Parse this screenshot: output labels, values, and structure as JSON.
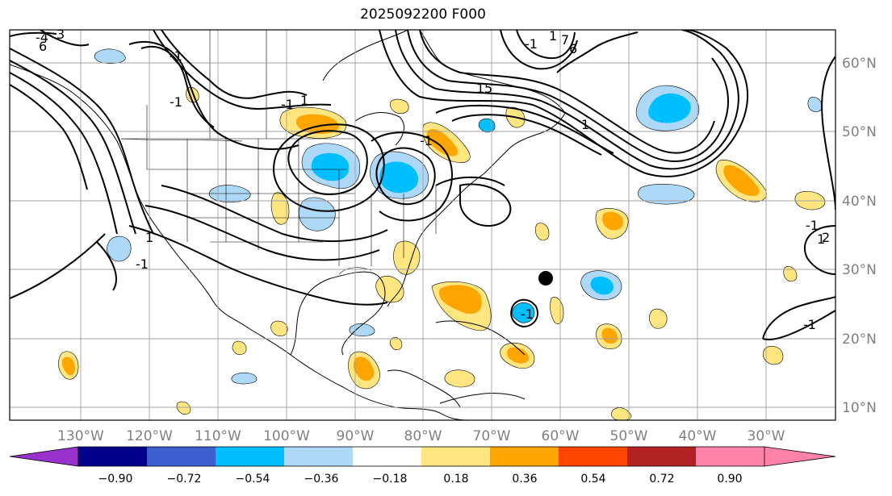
{
  "title": "2025092200 F000",
  "lat_labels": [
    "60°N",
    "50°N",
    "40°N",
    "30°N",
    "20°N",
    "10°N"
  ],
  "lon_labels": [
    "130°W",
    "120°W",
    "110°W",
    "100°W",
    "90°W",
    "80°W",
    "70°W",
    "60°W",
    "50°W",
    "40°W",
    "30°W"
  ],
  "colorbar": {
    "colors": [
      "#9932cc",
      "#00008b",
      "#3b5fcd",
      "#00bfff",
      "#add8f7",
      "#ffffff",
      "#ffe680",
      "#ffa500",
      "#ff4500",
      "#b22222",
      "#ff82ab"
    ],
    "ticks": [
      "−0.90",
      "−0.72",
      "−0.54",
      "−0.36",
      "−0.18",
      "0.18",
      "0.36",
      "0.54",
      "0.72",
      "0.90"
    ]
  },
  "contour_labels": [
    "-1",
    "-1",
    "-1",
    "-1",
    "-1",
    "-1",
    "-1",
    "-1",
    "-1",
    "1",
    "1",
    "1",
    "1",
    "1",
    "1",
    "6",
    "5",
    "-4",
    "3",
    "7",
    "6",
    "2"
  ],
  "legend_colors": {
    "light_blue": "#add8f7",
    "blue": "#00bfff",
    "yellow": "#ffe680",
    "orange": "#ffa500"
  },
  "marker": {
    "name": "storm-center",
    "lat": 28.8,
    "lon": -61.0
  }
}
